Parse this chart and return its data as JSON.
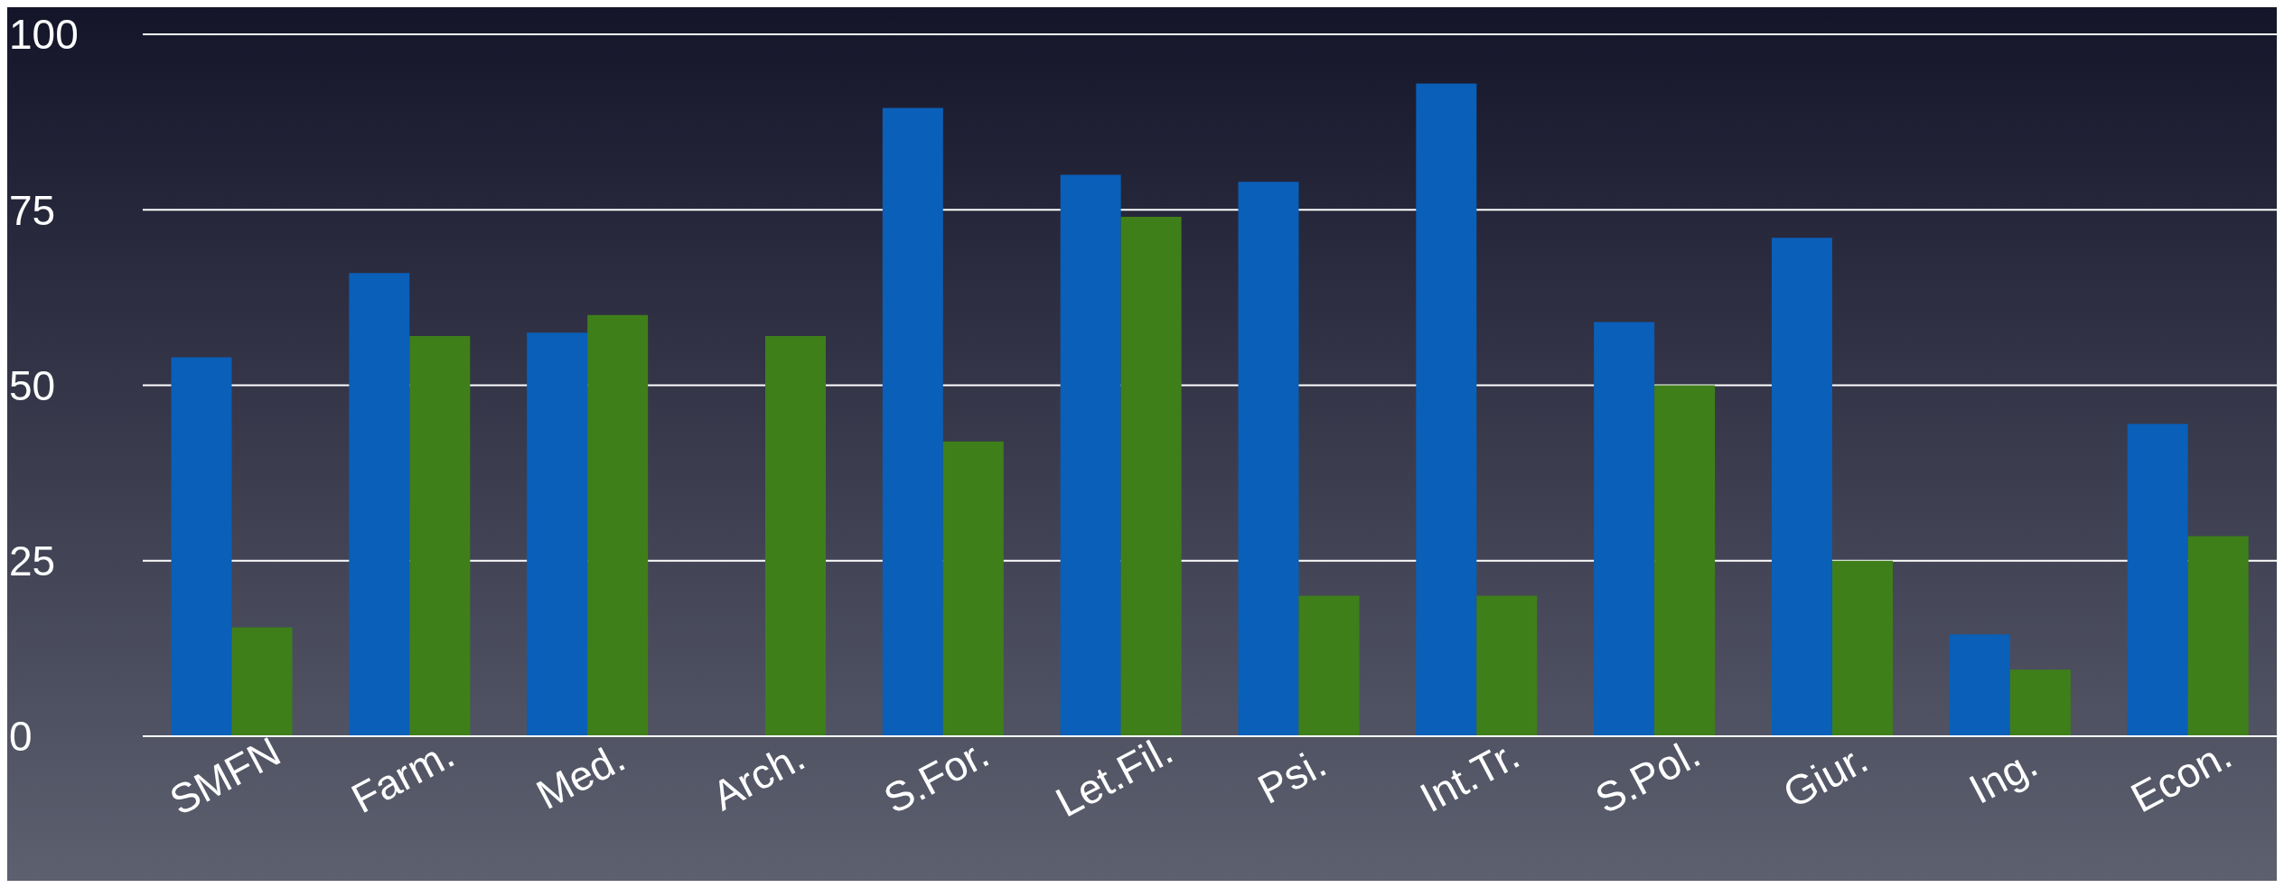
{
  "chart_data": {
    "type": "bar",
    "categories": [
      "SMFN",
      "Farm.",
      "Med.",
      "Arch.",
      "S.For.",
      "Let.Fil.",
      "Psi.",
      "Int.Tr.",
      "S.Pol.",
      "Giur.",
      "Ing.",
      "Econ."
    ],
    "series": [
      {
        "color": "#0a5fb8",
        "values": [
          54,
          66,
          57.5,
          null,
          89.5,
          80,
          79,
          93,
          59,
          71,
          14.5,
          44.5
        ]
      },
      {
        "color": "#3f7f1a",
        "values": [
          15.5,
          57,
          60,
          57,
          42,
          74,
          20,
          20,
          50,
          25,
          9.5,
          28.5
        ]
      }
    ],
    "ylim": [
      0,
      100
    ],
    "yticks": [
      0,
      25,
      50,
      75,
      100
    ],
    "grid": "y",
    "legend": false
  }
}
